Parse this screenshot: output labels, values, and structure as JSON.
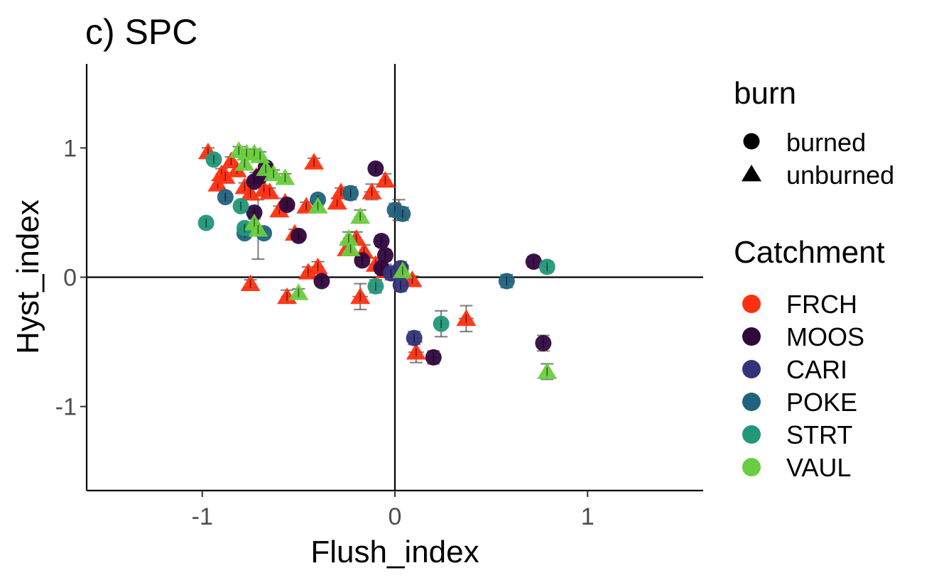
{
  "chart_data": {
    "type": "scatter",
    "title": "c) SPC",
    "xlabel": "Flush_index",
    "ylabel": "Hyst_index",
    "xlim": [
      -1.6,
      1.6
    ],
    "ylim": [
      -1.65,
      1.65
    ],
    "xticks": [
      -1,
      0,
      1
    ],
    "yticks": [
      -1,
      0,
      1
    ],
    "xtick_labels": [
      "-1",
      "0",
      "1"
    ],
    "ytick_labels": [
      "-1",
      "0",
      "1"
    ],
    "reference_lines": {
      "x": 0,
      "y": 0
    },
    "grid": false,
    "legend_position": "right",
    "legends": {
      "shape": {
        "title": "burn",
        "entries": [
          {
            "label": "burned",
            "shape": "circle"
          },
          {
            "label": "unburned",
            "shape": "triangle"
          }
        ]
      },
      "color": {
        "title": "Catchment",
        "entries": [
          {
            "label": "FRCH",
            "color": "#FF3010"
          },
          {
            "label": "MOOS",
            "color": "#30073F"
          },
          {
            "label": "CARI",
            "color": "#32347A"
          },
          {
            "label": "POKE",
            "color": "#21637E"
          },
          {
            "label": "STRT",
            "color": "#22977A"
          },
          {
            "label": "VAUL",
            "color": "#6ACD40"
          }
        ]
      }
    },
    "points": [
      {
        "x": -0.97,
        "y": 0.97,
        "c": "FRCH",
        "b": "unburned",
        "ex": 0.02,
        "ey": 0.03
      },
      {
        "x": -0.92,
        "y": 0.72,
        "c": "FRCH",
        "b": "unburned",
        "ex": 0.02,
        "ey": 0.03
      },
      {
        "x": -0.9,
        "y": 0.8,
        "c": "FRCH",
        "b": "unburned",
        "ex": 0.03,
        "ey": 0.04
      },
      {
        "x": -0.88,
        "y": 0.78,
        "c": "FRCH",
        "b": "unburned",
        "ex": 0.02,
        "ey": 0.03
      },
      {
        "x": -0.85,
        "y": 0.9,
        "c": "FRCH",
        "b": "unburned",
        "ex": 0.02,
        "ey": 0.03
      },
      {
        "x": -0.82,
        "y": 0.83,
        "c": "FRCH",
        "b": "unburned",
        "ex": 0.02,
        "ey": 0.03
      },
      {
        "x": -0.78,
        "y": 0.7,
        "c": "FRCH",
        "b": "unburned",
        "ex": 0.02,
        "ey": 0.03
      },
      {
        "x": -0.75,
        "y": 0.65,
        "c": "FRCH",
        "b": "unburned",
        "ex": 0.02,
        "ey": 0.03
      },
      {
        "x": -0.72,
        "y": 0.78,
        "c": "FRCH",
        "b": "unburned",
        "ex": 0.02,
        "ey": 0.03
      },
      {
        "x": -0.68,
        "y": 0.68,
        "c": "FRCH",
        "b": "unburned",
        "ex": 0.02,
        "ey": 0.03
      },
      {
        "x": -0.65,
        "y": 0.66,
        "c": "FRCH",
        "b": "unburned",
        "ex": 0.02,
        "ey": 0.03
      },
      {
        "x": -0.6,
        "y": 0.52,
        "c": "FRCH",
        "b": "unburned",
        "ex": 0.02,
        "ey": 0.03
      },
      {
        "x": -0.57,
        "y": 0.58,
        "c": "FRCH",
        "b": "unburned",
        "ex": 0.02,
        "ey": 0.03
      },
      {
        "x": -0.52,
        "y": 0.34,
        "c": "FRCH",
        "b": "unburned",
        "ex": 0.02,
        "ey": 0.03
      },
      {
        "x": -0.46,
        "y": 0.55,
        "c": "FRCH",
        "b": "unburned",
        "ex": 0.02,
        "ey": 0.03
      },
      {
        "x": -0.42,
        "y": 0.89,
        "c": "FRCH",
        "b": "unburned",
        "ex": 0.02,
        "ey": 0.03
      },
      {
        "x": -0.3,
        "y": 0.58,
        "c": "FRCH",
        "b": "unburned",
        "ex": 0.02,
        "ey": 0.03
      },
      {
        "x": -0.28,
        "y": 0.66,
        "c": "FRCH",
        "b": "unburned",
        "ex": 0.02,
        "ey": 0.03
      },
      {
        "x": -0.25,
        "y": 0.22,
        "c": "FRCH",
        "b": "unburned",
        "ex": 0.02,
        "ey": 0.05
      },
      {
        "x": -0.2,
        "y": 0.3,
        "c": "FRCH",
        "b": "unburned",
        "ex": 0.02,
        "ey": 0.05
      },
      {
        "x": -0.16,
        "y": 0.2,
        "c": "FRCH",
        "b": "unburned",
        "ex": 0.02,
        "ey": 0.05
      },
      {
        "x": -0.12,
        "y": 0.66,
        "c": "FRCH",
        "b": "unburned",
        "ex": 0.04,
        "ey": 0.06
      },
      {
        "x": -0.05,
        "y": 0.75,
        "c": "FRCH",
        "b": "unburned",
        "ex": 0.03,
        "ey": 0.05
      },
      {
        "x": 0.02,
        "y": 0.52,
        "c": "FRCH",
        "b": "unburned",
        "ex": 0.02,
        "ey": 0.08
      },
      {
        "x": -0.75,
        "y": -0.05,
        "c": "FRCH",
        "b": "unburned",
        "ex": 0.02,
        "ey": 0.03
      },
      {
        "x": -0.56,
        "y": -0.15,
        "c": "FRCH",
        "b": "unburned",
        "ex": 0.03,
        "ey": 0.05
      },
      {
        "x": -0.45,
        "y": 0.04,
        "c": "FRCH",
        "b": "unburned",
        "ex": 0.03,
        "ey": 0.04
      },
      {
        "x": -0.4,
        "y": 0.08,
        "c": "FRCH",
        "b": "unburned",
        "ex": 0.03,
        "ey": 0.04
      },
      {
        "x": -0.18,
        "y": -0.15,
        "c": "FRCH",
        "b": "unburned",
        "ex": 0.04,
        "ey": 0.1
      },
      {
        "x": -0.1,
        "y": 0.1,
        "c": "FRCH",
        "b": "unburned",
        "ex": 0.04,
        "ey": 0.05
      },
      {
        "x": -0.05,
        "y": 0.05,
        "c": "FRCH",
        "b": "unburned",
        "ex": 0.04,
        "ey": 0.05
      },
      {
        "x": 0.09,
        "y": -0.02,
        "c": "FRCH",
        "b": "unburned",
        "ex": 0.02,
        "ey": 0.03
      },
      {
        "x": 0.11,
        "y": -0.58,
        "c": "FRCH",
        "b": "unburned",
        "ex": 0.04,
        "ey": 0.08
      },
      {
        "x": 0.37,
        "y": -0.32,
        "c": "FRCH",
        "b": "unburned",
        "ex": 0.04,
        "ey": 0.1
      },
      {
        "x": -0.1,
        "y": 0.84,
        "c": "MOOS",
        "b": "burned",
        "ex": 0.02,
        "ey": 0.03
      },
      {
        "x": -0.67,
        "y": 0.85,
        "c": "MOOS",
        "b": "burned",
        "ex": 0.02,
        "ey": 0.03
      },
      {
        "x": -0.7,
        "y": 0.78,
        "c": "MOOS",
        "b": "burned",
        "ex": 0.02,
        "ey": 0.03
      },
      {
        "x": -0.73,
        "y": 0.74,
        "c": "MOOS",
        "b": "burned",
        "ex": 0.02,
        "ey": 0.03
      },
      {
        "x": -0.56,
        "y": 0.56,
        "c": "MOOS",
        "b": "burned",
        "ex": 0.02,
        "ey": 0.03
      },
      {
        "x": -0.73,
        "y": 0.5,
        "c": "MOOS",
        "b": "burned",
        "ex": 0.02,
        "ey": 0.03
      },
      {
        "x": -0.5,
        "y": 0.32,
        "c": "MOOS",
        "b": "burned",
        "ex": 0.02,
        "ey": 0.03
      },
      {
        "x": -0.07,
        "y": 0.28,
        "c": "MOOS",
        "b": "burned",
        "ex": 0.03,
        "ey": 0.04
      },
      {
        "x": -0.05,
        "y": 0.17,
        "c": "MOOS",
        "b": "burned",
        "ex": 0.03,
        "ey": 0.04
      },
      {
        "x": -0.17,
        "y": 0.13,
        "c": "MOOS",
        "b": "burned",
        "ex": 0.03,
        "ey": 0.04
      },
      {
        "x": -0.07,
        "y": 0.07,
        "c": "MOOS",
        "b": "burned",
        "ex": 0.03,
        "ey": 0.04
      },
      {
        "x": -0.38,
        "y": -0.03,
        "c": "MOOS",
        "b": "burned",
        "ex": 0.02,
        "ey": 0.03
      },
      {
        "x": 0.2,
        "y": -0.62,
        "c": "MOOS",
        "b": "burned",
        "ex": 0.03,
        "ey": 0.05
      },
      {
        "x": 0.72,
        "y": 0.12,
        "c": "MOOS",
        "b": "burned",
        "ex": 0.03,
        "ey": 0.04
      },
      {
        "x": 0.77,
        "y": -0.51,
        "c": "MOOS",
        "b": "burned",
        "ex": 0.02,
        "ey": 0.06
      },
      {
        "x": 0.1,
        "y": -0.47,
        "c": "CARI",
        "b": "burned",
        "ex": 0.03,
        "ey": 0.05
      },
      {
        "x": 0.03,
        "y": -0.06,
        "c": "CARI",
        "b": "burned",
        "ex": 0.03,
        "ey": 0.05
      },
      {
        "x": -0.02,
        "y": 0.03,
        "c": "CARI",
        "b": "burned",
        "ex": 0.03,
        "ey": 0.05
      },
      {
        "x": 0.03,
        "y": 0.07,
        "c": "CARI",
        "b": "burned",
        "ex": 0.03,
        "ey": 0.05
      },
      {
        "x": -0.88,
        "y": 0.62,
        "c": "POKE",
        "b": "burned",
        "ex": 0.02,
        "ey": 0.03
      },
      {
        "x": -0.78,
        "y": 0.34,
        "c": "POKE",
        "b": "burned",
        "ex": 0.02,
        "ey": 0.03
      },
      {
        "x": -0.68,
        "y": 0.34,
        "c": "POKE",
        "b": "burned",
        "ex": 0.02,
        "ey": 0.03
      },
      {
        "x": -0.4,
        "y": 0.6,
        "c": "POKE",
        "b": "burned",
        "ex": 0.02,
        "ey": 0.03
      },
      {
        "x": -0.23,
        "y": 0.65,
        "c": "POKE",
        "b": "burned",
        "ex": 0.03,
        "ey": 0.05
      },
      {
        "x": 0.0,
        "y": 0.52,
        "c": "POKE",
        "b": "burned",
        "ex": 0.02,
        "ey": 0.05
      },
      {
        "x": 0.04,
        "y": 0.49,
        "c": "POKE",
        "b": "burned",
        "ex": 0.02,
        "ey": 0.05
      },
      {
        "x": 0.58,
        "y": -0.03,
        "c": "POKE",
        "b": "burned",
        "ex": 0.03,
        "ey": 0.05
      },
      {
        "x": -0.98,
        "y": 0.42,
        "c": "STRT",
        "b": "burned",
        "ex": 0.02,
        "ey": 0.03
      },
      {
        "x": -0.94,
        "y": 0.91,
        "c": "STRT",
        "b": "burned",
        "ex": 0.02,
        "ey": 0.03
      },
      {
        "x": -0.8,
        "y": 0.55,
        "c": "STRT",
        "b": "burned",
        "ex": 0.02,
        "ey": 0.03
      },
      {
        "x": -0.78,
        "y": 0.38,
        "c": "STRT",
        "b": "burned",
        "ex": 0.02,
        "ey": 0.03
      },
      {
        "x": -0.1,
        "y": -0.07,
        "c": "STRT",
        "b": "burned",
        "ex": 0.03,
        "ey": 0.05
      },
      {
        "x": 0.24,
        "y": -0.36,
        "c": "STRT",
        "b": "burned",
        "ex": 0.04,
        "ey": 0.1
      },
      {
        "x": 0.79,
        "y": 0.08,
        "c": "STRT",
        "b": "burned",
        "ex": 0.02,
        "ey": 0.04
      },
      {
        "x": -0.81,
        "y": 0.98,
        "c": "VAUL",
        "b": "unburned",
        "ex": 0.02,
        "ey": 0.03
      },
      {
        "x": -0.77,
        "y": 0.96,
        "c": "VAUL",
        "b": "unburned",
        "ex": 0.02,
        "ey": 0.03
      },
      {
        "x": -0.73,
        "y": 0.96,
        "c": "VAUL",
        "b": "unburned",
        "ex": 0.02,
        "ey": 0.03
      },
      {
        "x": -0.7,
        "y": 0.94,
        "c": "VAUL",
        "b": "unburned",
        "ex": 0.02,
        "ey": 0.03
      },
      {
        "x": -0.78,
        "y": 0.88,
        "c": "VAUL",
        "b": "unburned",
        "ex": 0.02,
        "ey": 0.03
      },
      {
        "x": -0.67,
        "y": 0.84,
        "c": "VAUL",
        "b": "unburned",
        "ex": 0.02,
        "ey": 0.03
      },
      {
        "x": -0.63,
        "y": 0.8,
        "c": "VAUL",
        "b": "unburned",
        "ex": 0.02,
        "ey": 0.03
      },
      {
        "x": -0.57,
        "y": 0.77,
        "c": "VAUL",
        "b": "unburned",
        "ex": 0.02,
        "ey": 0.03
      },
      {
        "x": -0.73,
        "y": 0.42,
        "c": "VAUL",
        "b": "unburned",
        "ex": 0.02,
        "ey": 0.03
      },
      {
        "x": -0.71,
        "y": 0.37,
        "c": "VAUL",
        "b": "unburned",
        "ex": 0.02,
        "ey": 0.23
      },
      {
        "x": -0.4,
        "y": 0.55,
        "c": "VAUL",
        "b": "unburned",
        "ex": 0.02,
        "ey": 0.03
      },
      {
        "x": -0.18,
        "y": 0.47,
        "c": "VAUL",
        "b": "unburned",
        "ex": 0.03,
        "ey": 0.05
      },
      {
        "x": -0.24,
        "y": 0.3,
        "c": "VAUL",
        "b": "unburned",
        "ex": 0.03,
        "ey": 0.05
      },
      {
        "x": -0.23,
        "y": 0.22,
        "c": "VAUL",
        "b": "unburned",
        "ex": 0.02,
        "ey": 0.05
      },
      {
        "x": -0.5,
        "y": -0.12,
        "c": "VAUL",
        "b": "unburned",
        "ex": 0.02,
        "ey": 0.03
      },
      {
        "x": 0.04,
        "y": 0.05,
        "c": "VAUL",
        "b": "unburned",
        "ex": 0.02,
        "ey": 0.04
      },
      {
        "x": 0.79,
        "y": -0.73,
        "c": "VAUL",
        "b": "unburned",
        "ex": 0.02,
        "ey": 0.06
      }
    ]
  }
}
